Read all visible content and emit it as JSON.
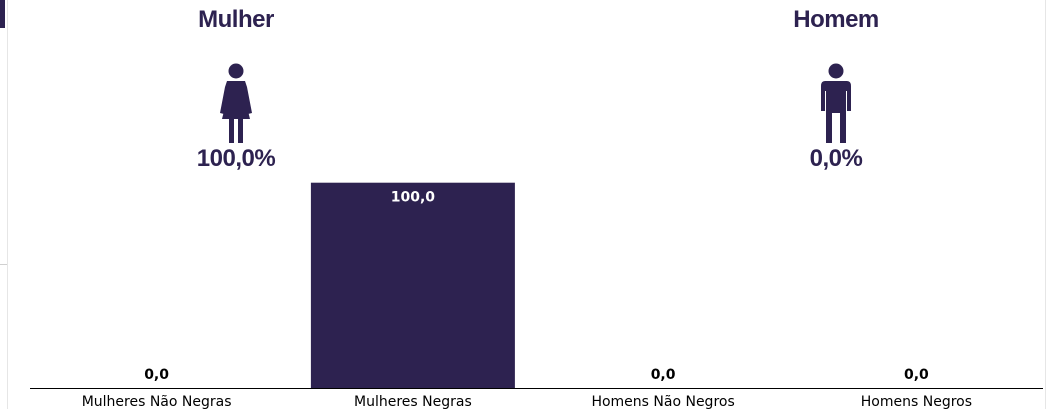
{
  "panels": {
    "female": {
      "title": "Mulher",
      "percent": "100,0%",
      "icon": "woman-icon"
    },
    "male": {
      "title": "Homem",
      "percent": "0,0%",
      "icon": "man-icon"
    }
  },
  "colors": {
    "accent": "#2d2250",
    "bar": "#2d2250",
    "bar_label_inside": "#ffffff",
    "bar_label_outside": "#000000",
    "axis": "#000000"
  },
  "chart_data": {
    "type": "bar",
    "categories": [
      "Mulheres Não Negras",
      "Mulheres Negras",
      "Homens Não Negros",
      "Homens Negros"
    ],
    "values": [
      0.0,
      100.0,
      0.0,
      0.0
    ],
    "data_labels": [
      "0,0",
      "100,0",
      "0,0",
      "0,0"
    ],
    "title": "",
    "xlabel": "",
    "ylabel": "",
    "ylim": [
      0,
      150
    ],
    "grid": false,
    "legend": "none"
  }
}
